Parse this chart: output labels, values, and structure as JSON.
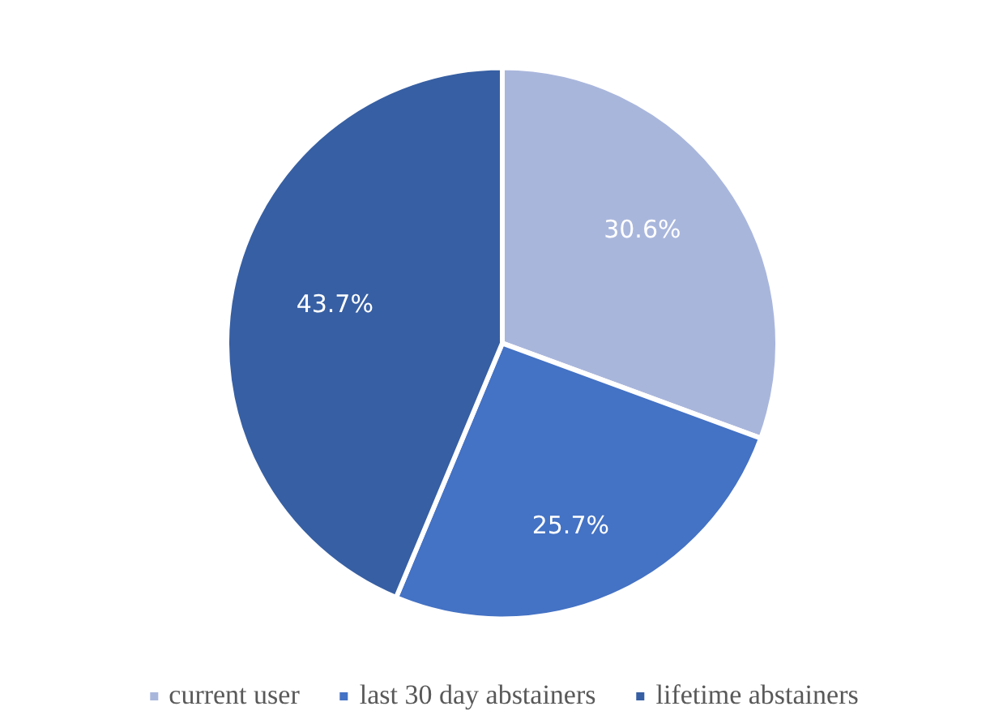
{
  "chart_data": {
    "type": "pie",
    "categories": [
      "current user",
      "last 30 day abstainers",
      "lifetime abstainers"
    ],
    "values": [
      30.6,
      25.7,
      43.7
    ],
    "colors": [
      "#a9b6dc",
      "#4472c4",
      "#375fa3"
    ],
    "value_labels": [
      "30.6%",
      "25.7%",
      "43.7%"
    ],
    "legend": "bottom"
  }
}
